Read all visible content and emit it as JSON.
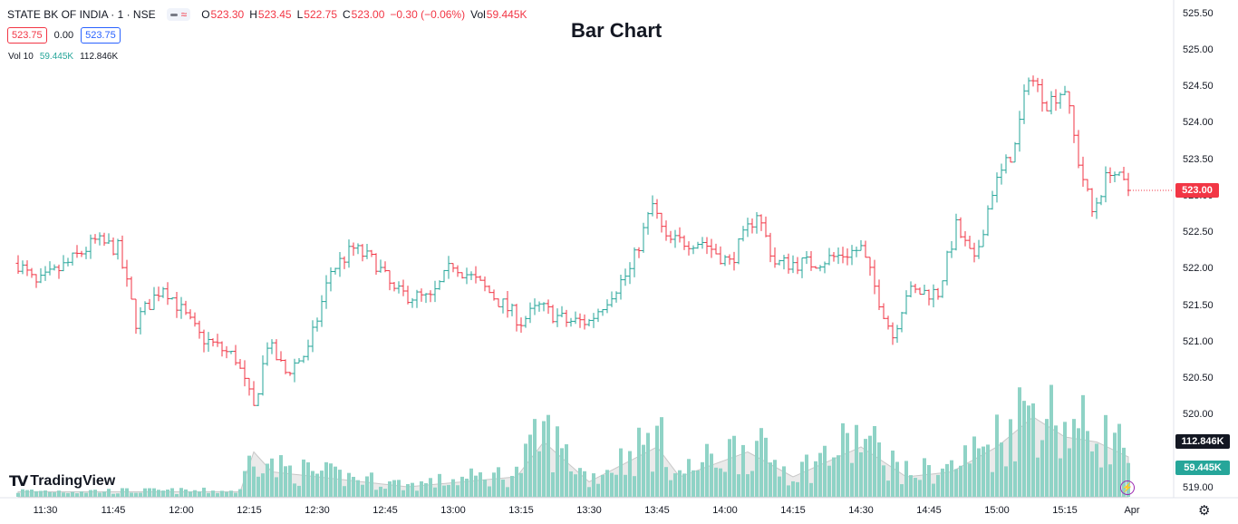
{
  "header": {
    "symbol": "STATE BK OF INDIA · 1 · NSE",
    "toggle_icons": [
      "minus-icon",
      "wave-icon"
    ],
    "ohlc": {
      "o_label": "O",
      "o_value": "523.30",
      "h_label": "H",
      "h_value": "523.45",
      "l_label": "L",
      "l_value": "522.75",
      "c_label": "C",
      "c_value": "523.00",
      "change": "−0.30 (−0.06%)",
      "vol_label": "Vol",
      "vol_value": "59.445K"
    },
    "bid": "523.75",
    "spread": "0.00",
    "ask": "523.75",
    "vol_indicator": {
      "name": "Vol 10",
      "value": "59.445K",
      "ma_value": "112.846K"
    }
  },
  "chart_title": "Bar Chart",
  "price_axis_labels": [
    "525.50",
    "525.00",
    "524.50",
    "524.00",
    "523.50",
    "523.00",
    "522.50",
    "522.00",
    "521.50",
    "521.00",
    "520.50",
    "520.00",
    "519.00"
  ],
  "time_axis_labels": [
    "11:30",
    "11:45",
    "12:00",
    "12:15",
    "12:30",
    "12:45",
    "13:00",
    "13:15",
    "13:30",
    "13:45",
    "14:00",
    "14:15",
    "14:30",
    "14:45",
    "15:00",
    "15:15",
    "Apr"
  ],
  "badges": {
    "last_price": "523.00",
    "vol_ma": "112.846K",
    "vol": "59.445K"
  },
  "logo_text": "TradingView",
  "colors": {
    "up": "#26a69a",
    "down": "#f23645",
    "vol_up": "#8fd3c6",
    "vol_down": "#8fd3c6",
    "vol_ma_fill": "#d9d9d9"
  },
  "chart_data": {
    "type": "bar",
    "style": "ohlc",
    "x_range": [
      "11:24",
      "15:29"
    ],
    "ylim": [
      518.9,
      525.6
    ],
    "control_points": [
      {
        "t": "11:24",
        "p": 522.0
      },
      {
        "t": "11:28",
        "p": 521.7
      },
      {
        "t": "11:35",
        "p": 522.0
      },
      {
        "t": "11:41",
        "p": 522.3
      },
      {
        "t": "11:46",
        "p": 522.2
      },
      {
        "t": "11:50",
        "p": 521.2
      },
      {
        "t": "11:56",
        "p": 521.7
      },
      {
        "t": "12:04",
        "p": 521.0
      },
      {
        "t": "12:12",
        "p": 520.7
      },
      {
        "t": "12:16",
        "p": 520.0
      },
      {
        "t": "12:19",
        "p": 520.9
      },
      {
        "t": "12:23",
        "p": 520.5
      },
      {
        "t": "12:28",
        "p": 520.8
      },
      {
        "t": "12:33",
        "p": 521.9
      },
      {
        "t": "12:38",
        "p": 522.2
      },
      {
        "t": "12:43",
        "p": 522.0
      },
      {
        "t": "12:47",
        "p": 521.6
      },
      {
        "t": "12:55",
        "p": 521.5
      },
      {
        "t": "13:00",
        "p": 522.0
      },
      {
        "t": "13:08",
        "p": 521.6
      },
      {
        "t": "13:15",
        "p": 521.2
      },
      {
        "t": "13:19",
        "p": 521.4
      },
      {
        "t": "13:25",
        "p": 521.2
      },
      {
        "t": "13:30",
        "p": 521.2
      },
      {
        "t": "13:35",
        "p": 521.6
      },
      {
        "t": "13:39",
        "p": 521.9
      },
      {
        "t": "13:44",
        "p": 522.8
      },
      {
        "t": "13:47",
        "p": 522.3
      },
      {
        "t": "13:55",
        "p": 522.3
      },
      {
        "t": "14:01",
        "p": 522.0
      },
      {
        "t": "14:07",
        "p": 522.7
      },
      {
        "t": "14:11",
        "p": 522.0
      },
      {
        "t": "14:19",
        "p": 522.0
      },
      {
        "t": "14:25",
        "p": 522.1
      },
      {
        "t": "14:30",
        "p": 522.2
      },
      {
        "t": "14:34",
        "p": 521.5
      },
      {
        "t": "14:37",
        "p": 521.0
      },
      {
        "t": "14:40",
        "p": 521.6
      },
      {
        "t": "14:47",
        "p": 521.6
      },
      {
        "t": "14:51",
        "p": 522.5
      },
      {
        "t": "14:55",
        "p": 522.0
      },
      {
        "t": "14:59",
        "p": 523.0
      },
      {
        "t": "15:04",
        "p": 523.6
      },
      {
        "t": "15:07",
        "p": 524.6
      },
      {
        "t": "15:11",
        "p": 524.2
      },
      {
        "t": "15:15",
        "p": 524.4
      },
      {
        "t": "15:18",
        "p": 523.4
      },
      {
        "t": "15:21",
        "p": 522.7
      },
      {
        "t": "15:25",
        "p": 523.3
      },
      {
        "t": "15:29",
        "p": 523.0
      }
    ],
    "volume_scale": "relative 0–1",
    "volume_profile": [
      {
        "t": "11:24",
        "v": 0.05
      },
      {
        "t": "12:13",
        "v": 0.05
      },
      {
        "t": "12:16",
        "v": 0.45
      },
      {
        "t": "12:20",
        "v": 0.25
      },
      {
        "t": "12:50",
        "v": 0.1
      },
      {
        "t": "13:14",
        "v": 0.2
      },
      {
        "t": "13:20",
        "v": 0.55
      },
      {
        "t": "13:30",
        "v": 0.15
      },
      {
        "t": "13:45",
        "v": 0.5
      },
      {
        "t": "13:50",
        "v": 0.2
      },
      {
        "t": "14:05",
        "v": 0.45
      },
      {
        "t": "14:15",
        "v": 0.2
      },
      {
        "t": "14:30",
        "v": 0.5
      },
      {
        "t": "14:40",
        "v": 0.2
      },
      {
        "t": "14:50",
        "v": 0.25
      },
      {
        "t": "15:00",
        "v": 0.5
      },
      {
        "t": "15:08",
        "v": 0.8
      },
      {
        "t": "15:15",
        "v": 0.6
      },
      {
        "t": "15:22",
        "v": 0.55
      },
      {
        "t": "15:29",
        "v": 0.4
      }
    ]
  }
}
